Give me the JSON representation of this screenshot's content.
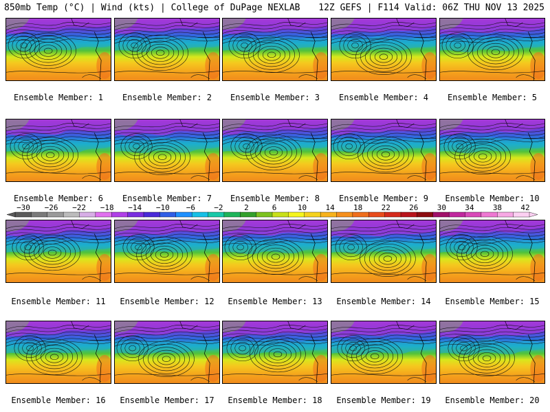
{
  "header": {
    "left_title": "850mb Temp (°C) | Wind (kts) | College of DuPage NEXLAB",
    "right_title": "12Z GEFS | F114 Valid: 06Z THU NOV 13 2025"
  },
  "colorbar": {
    "tick_labels": [
      "−30",
      "−26",
      "−22",
      "−18",
      "−14",
      "−10",
      "−6",
      "−2",
      "2",
      "6",
      "10",
      "14",
      "18",
      "22",
      "26",
      "30",
      "34",
      "38",
      "42"
    ],
    "colors": [
      "#5a5a5a",
      "#7a7a7a",
      "#9a9a9a",
      "#bcbcbc",
      "#d7aee6",
      "#e070ef",
      "#b040e8",
      "#7a2ee0",
      "#4a2ad8",
      "#2f5ee6",
      "#1e90ff",
      "#17c0e6",
      "#19c9a8",
      "#1eb45a",
      "#33a02c",
      "#7cc21f",
      "#c8e01a",
      "#f5f51e",
      "#f5d21e",
      "#f7b21c",
      "#f58f1c",
      "#ef6e1c",
      "#e84c1c",
      "#d42a1c",
      "#b8141c",
      "#8c0c10",
      "#a0106a",
      "#c0289e",
      "#d84ab8",
      "#ee78d2",
      "#f7a8e4",
      "#fcd0f2"
    ]
  },
  "members": [
    {
      "label": "Ensemble Member: 1"
    },
    {
      "label": "Ensemble Member: 2"
    },
    {
      "label": "Ensemble Member: 3"
    },
    {
      "label": "Ensemble Member: 4"
    },
    {
      "label": "Ensemble Member: 5"
    },
    {
      "label": "Ensemble Member: 6"
    },
    {
      "label": "Ensemble Member: 7"
    },
    {
      "label": "Ensemble Member: 8"
    },
    {
      "label": "Ensemble Member: 9"
    },
    {
      "label": "Ensemble Member: 10"
    },
    {
      "label": "Ensemble Member: 11"
    },
    {
      "label": "Ensemble Member: 12"
    },
    {
      "label": "Ensemble Member: 13"
    },
    {
      "label": "Ensemble Member: 14"
    },
    {
      "label": "Ensemble Member: 15"
    },
    {
      "label": "Ensemble Member: 16"
    },
    {
      "label": "Ensemble Member: 17"
    },
    {
      "label": "Ensemble Member: 18"
    },
    {
      "label": "Ensemble Member: 19"
    },
    {
      "label": "Ensemble Member: 20"
    }
  ]
}
